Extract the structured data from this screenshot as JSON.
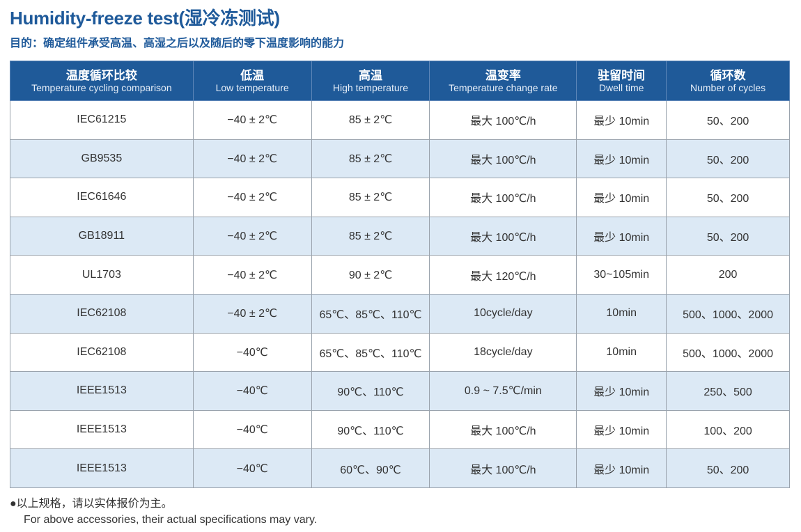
{
  "title": "Humidity-freeze test(湿冷冻测试)",
  "subtitle": "目的：确定组件承受高温、高湿之后以及随后的零下温度影响的能力",
  "table": {
    "headers": [
      {
        "cn": "温度循环比较",
        "en": "Temperature cycling comparison"
      },
      {
        "cn": "低温",
        "en": "Low temperature"
      },
      {
        "cn": "高温",
        "en": "High temperature"
      },
      {
        "cn": "温变率",
        "en": "Temperature change rate"
      },
      {
        "cn": "驻留时间",
        "en": "Dwell time"
      },
      {
        "cn": "循环数",
        "en": "Number of cycles"
      }
    ],
    "rows": [
      [
        "IEC61215",
        "−40 ± 2℃",
        "85 ± 2℃",
        "最大 100℃/h",
        "最少 10min",
        "50、200"
      ],
      [
        "GB9535",
        "−40 ± 2℃",
        "85 ± 2℃",
        "最大 100℃/h",
        "最少 10min",
        "50、200"
      ],
      [
        "IEC61646",
        "−40 ± 2℃",
        "85 ± 2℃",
        "最大 100℃/h",
        "最少 10min",
        "50、200"
      ],
      [
        "GB18911",
        "−40 ± 2℃",
        "85 ± 2℃",
        "最大 100℃/h",
        "最少 10min",
        "50、200"
      ],
      [
        "UL1703",
        "−40 ± 2℃",
        "90 ± 2℃",
        "最大 120℃/h",
        "30~105min",
        "200"
      ],
      [
        "IEC62108",
        "−40 ± 2℃",
        "65℃、85℃、110℃",
        "10cycle/day",
        "10min",
        "500、1000、2000"
      ],
      [
        "IEC62108",
        "−40℃",
        "65℃、85℃、110℃",
        "18cycle/day",
        "10min",
        "500、1000、2000"
      ],
      [
        "IEEE1513",
        "−40℃",
        "90℃、110℃",
        "0.9 ~ 7.5℃/min",
        "最少 10min",
        "250、500"
      ],
      [
        "IEEE1513",
        "−40℃",
        "90℃、110℃",
        "最大 100℃/h",
        "最少 10min",
        "100、200"
      ],
      [
        "IEEE1513",
        "−40℃",
        "60℃、90℃",
        "最大 100℃/h",
        "最少 10min",
        "50、200"
      ]
    ]
  },
  "note": {
    "cn": "●以上规格，请以实体报价为主。",
    "en": "For above accessories, their actual specifications may vary."
  },
  "colors": {
    "header": "#1f5a99",
    "alt_row": "#dce9f5",
    "title": "#1f5a9a"
  }
}
